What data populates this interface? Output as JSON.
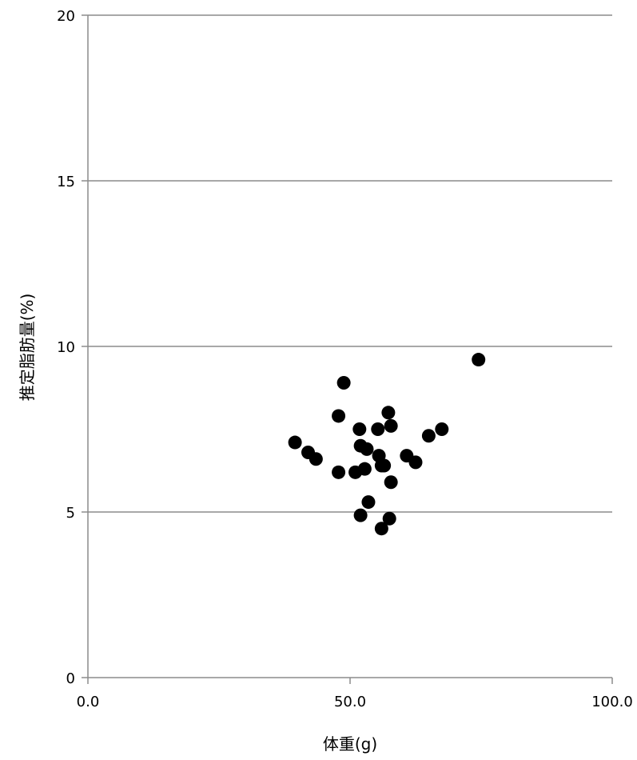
{
  "chart_data": {
    "type": "scatter",
    "xlabel": "体重(g)",
    "ylabel": "推定脂肪量(%)",
    "xlim": [
      0,
      100
    ],
    "ylim": [
      0,
      20
    ],
    "x_ticks": [
      "0.0",
      "50.0",
      "100.0"
    ],
    "y_ticks": [
      "0",
      "5",
      "10",
      "15",
      "20"
    ],
    "grid": "horizontal",
    "marker_color": "#000000",
    "gridline_color": "#8c8c8c",
    "points": [
      {
        "x": 39.5,
        "y": 7.1
      },
      {
        "x": 42.0,
        "y": 6.8
      },
      {
        "x": 43.5,
        "y": 6.6
      },
      {
        "x": 47.8,
        "y": 7.9
      },
      {
        "x": 48.8,
        "y": 8.9
      },
      {
        "x": 47.8,
        "y": 6.2
      },
      {
        "x": 51.0,
        "y": 6.2
      },
      {
        "x": 51.8,
        "y": 7.5
      },
      {
        "x": 52.0,
        "y": 7.0
      },
      {
        "x": 52.0,
        "y": 4.9
      },
      {
        "x": 52.8,
        "y": 6.3
      },
      {
        "x": 53.2,
        "y": 6.9
      },
      {
        "x": 53.5,
        "y": 5.3
      },
      {
        "x": 55.3,
        "y": 7.5
      },
      {
        "x": 55.5,
        "y": 6.7
      },
      {
        "x": 56.0,
        "y": 6.4
      },
      {
        "x": 56.5,
        "y": 6.4
      },
      {
        "x": 56.0,
        "y": 4.5
      },
      {
        "x": 57.3,
        "y": 8.0
      },
      {
        "x": 57.8,
        "y": 7.6
      },
      {
        "x": 57.5,
        "y": 4.8
      },
      {
        "x": 57.8,
        "y": 5.9
      },
      {
        "x": 60.8,
        "y": 6.7
      },
      {
        "x": 62.5,
        "y": 6.5
      },
      {
        "x": 65.0,
        "y": 7.3
      },
      {
        "x": 67.5,
        "y": 7.5
      },
      {
        "x": 74.5,
        "y": 9.6
      }
    ]
  }
}
